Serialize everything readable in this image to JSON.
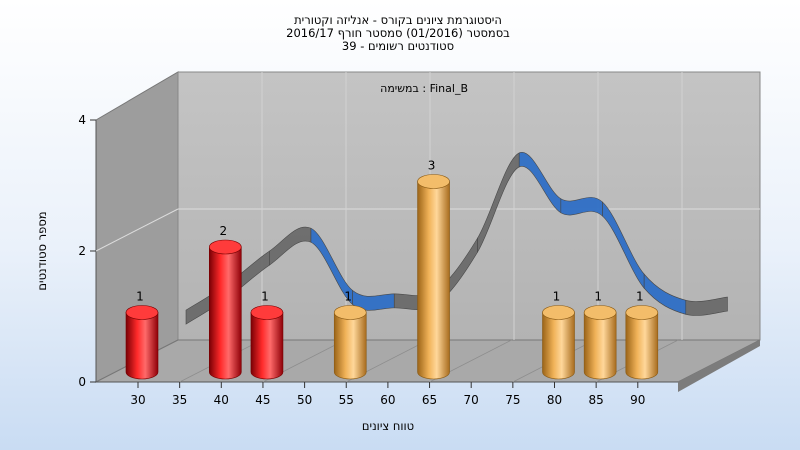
{
  "chart_data": {
    "type": "bar",
    "title_lines": [
      "היסטוגרמת ציונים בקורס - אנליזה וקטורית",
      "בסמסטר  (01/2016)  סמסטר חורף 2016/17",
      "סטודנטים רשומים - 39"
    ],
    "subtitle": "במשימה : Final_B",
    "xlabel": "טווח ציונים",
    "ylabel": "מספר סטודנטים",
    "ylim": [
      0,
      4
    ],
    "yticks": [
      "0",
      "2",
      "4"
    ],
    "xticks": [
      "30",
      "35",
      "40",
      "45",
      "50",
      "55",
      "60",
      "65",
      "70",
      "75",
      "80",
      "85",
      "90"
    ],
    "grid": true,
    "bars": [
      {
        "x": 30,
        "value": 1,
        "label": "1",
        "color": "red"
      },
      {
        "x": 40,
        "value": 2,
        "label": "2",
        "color": "red"
      },
      {
        "x": 45,
        "value": 1,
        "label": "1",
        "color": "red"
      },
      {
        "x": 55,
        "value": 1,
        "label": "1",
        "color": "orange"
      },
      {
        "x": 65,
        "value": 3,
        "label": "3",
        "color": "orange"
      },
      {
        "x": 80,
        "value": 1,
        "label": "1",
        "color": "orange"
      },
      {
        "x": 85,
        "value": 1,
        "label": "1",
        "color": "orange"
      },
      {
        "x": 90,
        "value": 1,
        "label": "1",
        "color": "orange"
      }
    ],
    "curve": [
      {
        "x": 30,
        "value": 0.7
      },
      {
        "x": 35,
        "value": 1.1
      },
      {
        "x": 40,
        "value": 1.6
      },
      {
        "x": 45,
        "value": 1.95
      },
      {
        "x": 50,
        "value": 1.0
      },
      {
        "x": 55,
        "value": 0.95
      },
      {
        "x": 60,
        "value": 1.0
      },
      {
        "x": 65,
        "value": 1.8
      },
      {
        "x": 70,
        "value": 3.1
      },
      {
        "x": 75,
        "value": 2.4
      },
      {
        "x": 80,
        "value": 2.35
      },
      {
        "x": 85,
        "value": 1.25
      },
      {
        "x": 90,
        "value": 0.85
      },
      {
        "x": 95,
        "value": 0.9
      }
    ],
    "colors": {
      "red_bar": "#e8141c",
      "orange_bar": "#e8a64a",
      "curve_gray": "#6b6b6b",
      "curve_blue": "#2f6fc6",
      "wall_back": "#b9b9b9",
      "wall_side": "#9e9e9e",
      "floor": "#a8a8a8"
    }
  }
}
